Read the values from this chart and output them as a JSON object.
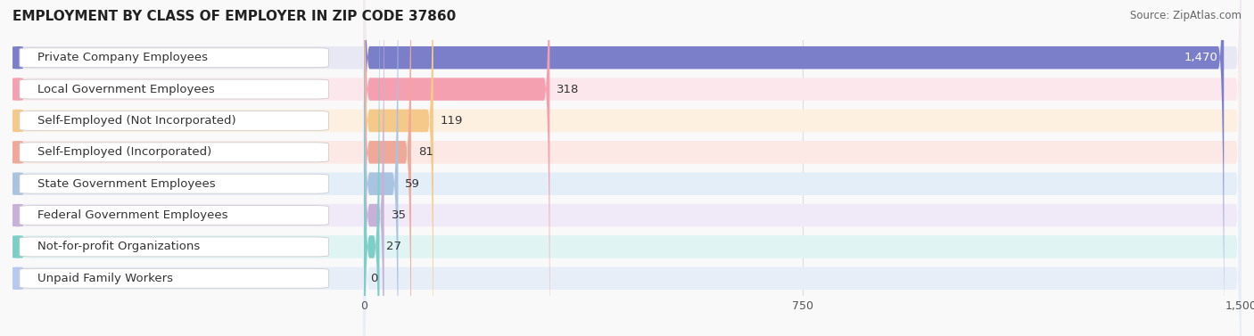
{
  "title": "EMPLOYMENT BY CLASS OF EMPLOYER IN ZIP CODE 37860",
  "source": "Source: ZipAtlas.com",
  "categories": [
    "Private Company Employees",
    "Local Government Employees",
    "Self-Employed (Not Incorporated)",
    "Self-Employed (Incorporated)",
    "State Government Employees",
    "Federal Government Employees",
    "Not-for-profit Organizations",
    "Unpaid Family Workers"
  ],
  "values": [
    1470,
    318,
    119,
    81,
    59,
    35,
    27,
    0
  ],
  "bar_colors": [
    "#7b7ec8",
    "#f4a0b0",
    "#f5c98a",
    "#f0a898",
    "#a8c4e0",
    "#c8b0d8",
    "#7ecec8",
    "#b8c8f0"
  ],
  "bar_bg_colors": [
    "#e8e8f4",
    "#fce8ec",
    "#fdf0e0",
    "#fce8e4",
    "#e4eef8",
    "#f0eaf8",
    "#e0f4f4",
    "#e8eef8"
  ],
  "label_color": "#333333",
  "value_color": "#333333",
  "value_color_inside": "#ffffff",
  "xlim": [
    0,
    1500
  ],
  "xticks": [
    0,
    750,
    1500
  ],
  "background_color": "#f9f9f9",
  "grid_color": "#dddddd",
  "title_fontsize": 11,
  "bar_label_fontsize": 9.5,
  "value_fontsize": 9.5,
  "source_fontsize": 8.5
}
